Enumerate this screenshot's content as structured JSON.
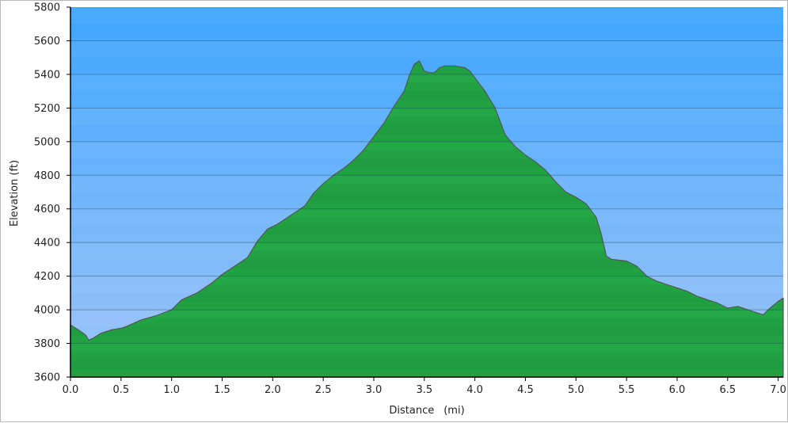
{
  "chart_data": {
    "type": "area",
    "title": "",
    "xlabel": "Distance",
    "xunit": "(mi)",
    "ylabel": "Elevation (ft)",
    "xlim": [
      0.0,
      7.05
    ],
    "ylim": [
      3600,
      5800
    ],
    "xticks": [
      0.0,
      0.5,
      1.0,
      1.5,
      2.0,
      2.5,
      3.0,
      3.5,
      4.0,
      4.5,
      5.0,
      5.5,
      6.0,
      6.5,
      7.0
    ],
    "xtick_labels": [
      "0.0",
      "0.5",
      "1.0",
      "1.5",
      "2.0",
      "2.5",
      "3.0",
      "3.5",
      "4.0",
      "4.5",
      "5.0",
      "5.5",
      "6.0",
      "6.5",
      "7.0"
    ],
    "yticks": [
      3600,
      3800,
      4000,
      4200,
      4400,
      4600,
      4800,
      5000,
      5200,
      5400,
      5600,
      5800
    ],
    "ytick_labels": [
      "3600",
      "3800",
      "4000",
      "4200",
      "4400",
      "4600",
      "4800",
      "5000",
      "5200",
      "5400",
      "5600",
      "5800"
    ],
    "grid": true,
    "colors": {
      "sky_top": "#3da5ff",
      "sky_bottom": "#9ec4f7",
      "fill_light": "#22a845",
      "fill_dark": "#1a7a33",
      "outline": "#555555"
    },
    "series": [
      {
        "x": [
          0.0,
          0.08,
          0.15,
          0.18,
          0.22,
          0.3,
          0.4,
          0.5,
          0.55,
          0.7,
          0.85,
          1.0,
          1.1,
          1.25,
          1.4,
          1.5,
          1.6,
          1.75,
          1.85,
          1.95,
          2.05,
          2.15,
          2.25,
          2.32,
          2.4,
          2.5,
          2.6,
          2.7,
          2.8,
          2.9,
          3.0,
          3.1,
          3.2,
          3.3,
          3.35,
          3.4,
          3.45,
          3.5,
          3.55,
          3.6,
          3.65,
          3.7,
          3.8,
          3.9,
          3.95,
          4.0,
          4.1,
          4.2,
          4.3,
          4.4,
          4.5,
          4.6,
          4.7,
          4.8,
          4.9,
          5.0,
          5.1,
          5.2,
          5.25,
          5.3,
          5.35,
          5.5,
          5.6,
          5.7,
          5.8,
          5.9,
          6.0,
          6.1,
          6.2,
          6.3,
          6.4,
          6.5,
          6.6,
          6.7,
          6.8,
          6.85,
          6.9,
          7.0,
          7.05
        ],
        "y": [
          3910,
          3880,
          3850,
          3820,
          3830,
          3860,
          3880,
          3890,
          3900,
          3940,
          3965,
          4000,
          4060,
          4100,
          4160,
          4210,
          4250,
          4310,
          4410,
          4480,
          4510,
          4550,
          4590,
          4620,
          4690,
          4750,
          4800,
          4840,
          4890,
          4950,
          5030,
          5110,
          5210,
          5300,
          5390,
          5460,
          5480,
          5420,
          5410,
          5410,
          5440,
          5450,
          5450,
          5440,
          5420,
          5380,
          5300,
          5200,
          5040,
          4970,
          4920,
          4880,
          4830,
          4760,
          4700,
          4670,
          4630,
          4550,
          4450,
          4320,
          4300,
          4290,
          4260,
          4200,
          4170,
          4150,
          4130,
          4110,
          4080,
          4060,
          4040,
          4010,
          4020,
          4000,
          3980,
          3970,
          4000,
          4050,
          4070
        ]
      }
    ]
  }
}
